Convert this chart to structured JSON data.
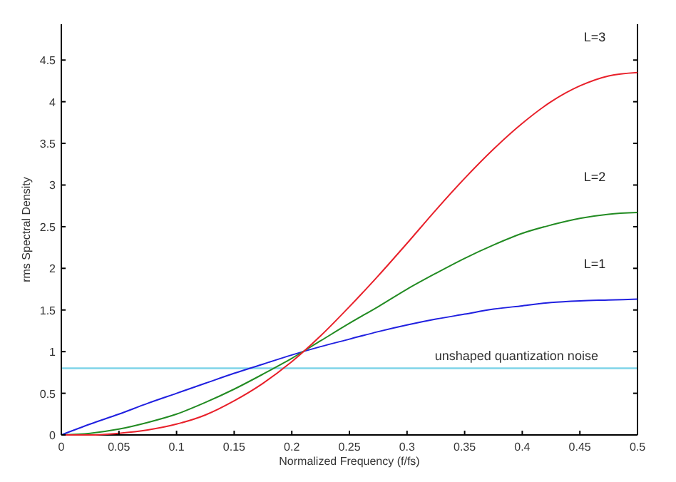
{
  "chart_data": {
    "type": "line",
    "xlabel": "Normalized Frequency (f/fs)",
    "ylabel": "rms Spectral Density",
    "x": [
      0,
      0.025,
      0.05,
      0.075,
      0.1,
      0.125,
      0.15,
      0.175,
      0.2,
      0.225,
      0.25,
      0.275,
      0.3,
      0.325,
      0.35,
      0.375,
      0.4,
      0.425,
      0.45,
      0.475,
      0.5
    ],
    "series": [
      {
        "name": "L=1",
        "color": "#2020e0",
        "values": [
          0,
          0.13,
          0.25,
          0.38,
          0.5,
          0.62,
          0.74,
          0.85,
          0.96,
          1.06,
          1.15,
          1.24,
          1.32,
          1.39,
          1.45,
          1.51,
          1.55,
          1.59,
          1.61,
          1.62,
          1.63
        ]
      },
      {
        "name": "L=2",
        "color": "#228b22",
        "values": [
          0,
          0.02,
          0.07,
          0.15,
          0.25,
          0.39,
          0.55,
          0.73,
          0.92,
          1.13,
          1.34,
          1.54,
          1.75,
          1.94,
          2.12,
          2.28,
          2.42,
          2.52,
          2.6,
          2.65,
          2.67
        ]
      },
      {
        "name": "L=3",
        "color": "#e8202a",
        "values": [
          0,
          0.0,
          0.02,
          0.06,
          0.13,
          0.24,
          0.41,
          0.62,
          0.88,
          1.19,
          1.54,
          1.91,
          2.3,
          2.7,
          3.08,
          3.43,
          3.74,
          4.0,
          4.19,
          4.31,
          4.35
        ]
      }
    ],
    "xlim": [
      0,
      0.5
    ],
    "xticks": [
      0,
      0.05,
      0.1,
      0.15,
      0.2,
      0.25,
      0.3,
      0.35,
      0.4,
      0.45,
      0.5
    ],
    "ylim": [
      0,
      4.93
    ],
    "yticks": [
      0,
      0.5,
      1,
      1.5,
      2,
      2.5,
      3,
      3.5,
      4,
      4.5
    ],
    "ref_lines": [
      {
        "axis": "y",
        "value": 0.8,
        "label": "unshaped quantization noise",
        "color": "#7fd4e8"
      }
    ],
    "grid": false,
    "line_style": "solid",
    "marker": "none"
  }
}
